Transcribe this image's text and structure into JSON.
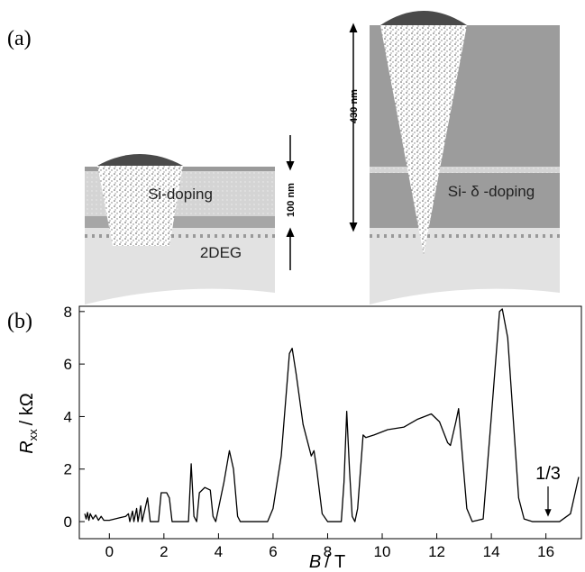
{
  "diagram": {
    "label": "(a)",
    "left": {
      "layer_label": "Si-doping",
      "gas_label": "2DEG",
      "thickness": "100 nm"
    },
    "right": {
      "layer_label": "Si- δ -doping",
      "thickness": "430 nm"
    }
  },
  "chart_data": {
    "type": "line",
    "label": "(b)",
    "xlabel_symbol": "B",
    "xlabel_unit": "/ T",
    "ylabel_symbol": "R",
    "ylabel_subscript": "xx",
    "ylabel_unit": "/ kΩ",
    "annotation": "1/3",
    "x": [
      -0.9,
      -0.85,
      -0.8,
      -0.75,
      -0.7,
      -0.6,
      -0.5,
      -0.4,
      -0.3,
      -0.2,
      0,
      0.2,
      0.4,
      0.6,
      0.7,
      0.75,
      0.85,
      0.9,
      1.0,
      1.05,
      1.15,
      1.2,
      1.4,
      1.5,
      1.8,
      1.9,
      2.1,
      2.2,
      2.3,
      2.9,
      3.0,
      3.1,
      3.2,
      3.3,
      3.5,
      3.7,
      3.8,
      3.9,
      4.2,
      4.4,
      4.55,
      4.7,
      4.8,
      5.8,
      6.0,
      6.3,
      6.6,
      6.7,
      6.85,
      7.1,
      7.4,
      7.5,
      7.6,
      7.8,
      8.0,
      8.5,
      8.6,
      8.7,
      8.8,
      8.9,
      9.0,
      9.1,
      9.3,
      9.4,
      9.7,
      10.2,
      10.8,
      11.3,
      11.8,
      12.1,
      12.4,
      12.5,
      12.7,
      12.8,
      12.9,
      13.1,
      13.3,
      13.7,
      14.0,
      14.3,
      14.4,
      14.6,
      15.0,
      15.2,
      15.5,
      16.5,
      16.9,
      17.2
    ],
    "values": [
      0.3,
      0.1,
      0.35,
      0.05,
      0.3,
      0.1,
      0.25,
      0.05,
      0.2,
      0.05,
      0.05,
      0.1,
      0.15,
      0.2,
      0.3,
      0.0,
      0.4,
      0.0,
      0.5,
      0.0,
      0.6,
      0.0,
      0.9,
      0.0,
      0.0,
      1.1,
      1.1,
      0.9,
      0.0,
      0.0,
      2.2,
      0.2,
      0.0,
      1.1,
      1.3,
      1.2,
      0.2,
      0.0,
      1.5,
      2.7,
      2.0,
      0.2,
      0.0,
      0.0,
      0.5,
      2.5,
      6.4,
      6.6,
      5.6,
      3.7,
      2.5,
      2.7,
      2.0,
      0.3,
      0.0,
      0.0,
      1.5,
      4.2,
      2.0,
      0.2,
      0.0,
      0.5,
      3.3,
      3.2,
      3.3,
      3.5,
      3.6,
      3.9,
      4.1,
      3.8,
      3.0,
      2.9,
      3.8,
      4.3,
      3.0,
      0.5,
      0.0,
      0.1,
      4.0,
      8.0,
      8.1,
      7.0,
      0.9,
      0.1,
      0.0,
      0.0,
      0.3,
      1.7
    ],
    "color": "#000000",
    "xlim": [
      -1.1,
      17.3
    ],
    "xticks": [
      0,
      2,
      4,
      6,
      8,
      10,
      12,
      14,
      16
    ],
    "ylim": [
      -0.65,
      8.2
    ],
    "yticks": [
      0,
      2,
      4,
      6,
      8
    ]
  }
}
